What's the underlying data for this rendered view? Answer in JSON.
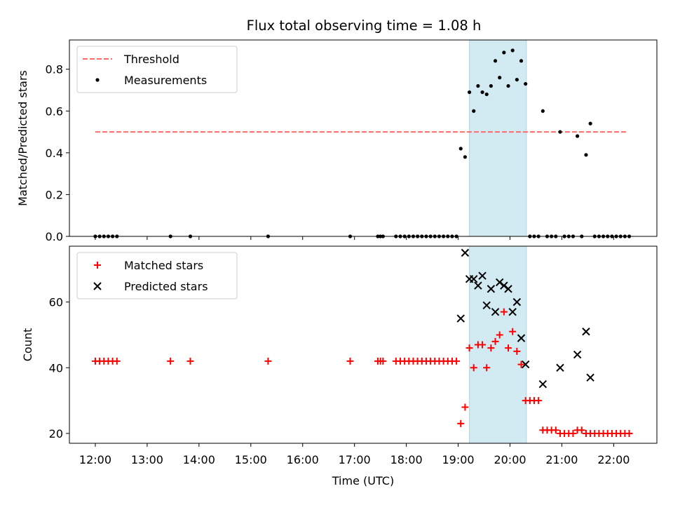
{
  "title": "Flux total observing time = 1.08 h",
  "colors": {
    "threshold": "#ff6b6b",
    "measurement": "#000000",
    "matched": "#ff0000",
    "predicted": "#000000",
    "highlight": "#add8e6"
  },
  "chart_data": [
    {
      "type": "scatter",
      "title": "Flux total observing time = 1.08 h",
      "xlabel": "",
      "ylabel": "Matched/Predicted stars",
      "xlim": [
        "11:30",
        "22:50"
      ],
      "ylim": [
        0,
        0.94
      ],
      "y_ticks": [
        0.0,
        0.2,
        0.4,
        0.6,
        0.8
      ],
      "y_tick_labels": [
        "0.0",
        "0.2",
        "0.4",
        "0.6",
        "0.8"
      ],
      "highlight_span": [
        "19:13",
        "20:19"
      ],
      "legend_position": "upper-left",
      "series": [
        {
          "name": "Threshold",
          "kind": "dashed-line",
          "x": [
            "12:00",
            "22:15"
          ],
          "y": [
            0.5,
            0.5
          ]
        },
        {
          "name": "Measurements",
          "kind": "points",
          "points": [
            [
              "12:00",
              0.0
            ],
            [
              "12:05",
              0.0
            ],
            [
              "12:10",
              0.0
            ],
            [
              "12:15",
              0.0
            ],
            [
              "12:20",
              0.0
            ],
            [
              "12:25",
              0.0
            ],
            [
              "13:27",
              0.0
            ],
            [
              "13:50",
              0.0
            ],
            [
              "15:20",
              0.0
            ],
            [
              "16:55",
              0.0
            ],
            [
              "17:27",
              0.0
            ],
            [
              "17:30",
              0.0
            ],
            [
              "17:33",
              0.0
            ],
            [
              "17:48",
              0.0
            ],
            [
              "17:53",
              0.0
            ],
            [
              "17:58",
              0.0
            ],
            [
              "18:03",
              0.0
            ],
            [
              "18:08",
              0.0
            ],
            [
              "18:13",
              0.0
            ],
            [
              "18:18",
              0.0
            ],
            [
              "18:23",
              0.0
            ],
            [
              "18:28",
              0.0
            ],
            [
              "18:33",
              0.0
            ],
            [
              "18:38",
              0.0
            ],
            [
              "18:43",
              0.0
            ],
            [
              "18:48",
              0.0
            ],
            [
              "18:53",
              0.0
            ],
            [
              "18:58",
              0.0
            ],
            [
              "19:03",
              0.42
            ],
            [
              "19:08",
              0.38
            ],
            [
              "19:13",
              0.69
            ],
            [
              "19:18",
              0.6
            ],
            [
              "19:23",
              0.72
            ],
            [
              "19:28",
              0.69
            ],
            [
              "19:33",
              0.68
            ],
            [
              "19:38",
              0.72
            ],
            [
              "19:43",
              0.84
            ],
            [
              "19:48",
              0.76
            ],
            [
              "19:53",
              0.88
            ],
            [
              "19:58",
              0.72
            ],
            [
              "20:03",
              0.89
            ],
            [
              "20:08",
              0.75
            ],
            [
              "20:13",
              0.84
            ],
            [
              "20:18",
              0.73
            ],
            [
              "20:23",
              0.0
            ],
            [
              "20:28",
              0.0
            ],
            [
              "20:33",
              0.0
            ],
            [
              "20:38",
              0.6
            ],
            [
              "20:43",
              0.0
            ],
            [
              "20:48",
              0.0
            ],
            [
              "20:53",
              0.0
            ],
            [
              "20:58",
              0.5
            ],
            [
              "21:03",
              0.0
            ],
            [
              "21:08",
              0.0
            ],
            [
              "21:13",
              0.0
            ],
            [
              "21:18",
              0.48
            ],
            [
              "21:23",
              0.0
            ],
            [
              "21:28",
              0.39
            ],
            [
              "21:33",
              0.54
            ],
            [
              "21:38",
              0.0
            ],
            [
              "21:43",
              0.0
            ],
            [
              "21:48",
              0.0
            ],
            [
              "21:53",
              0.0
            ],
            [
              "21:58",
              0.0
            ],
            [
              "22:03",
              0.0
            ],
            [
              "22:08",
              0.0
            ],
            [
              "22:13",
              0.0
            ],
            [
              "22:18",
              0.0
            ]
          ]
        }
      ]
    },
    {
      "type": "scatter",
      "title": "",
      "xlabel": "Time (UTC)",
      "ylabel": "Count",
      "xlim": [
        "11:30",
        "22:50"
      ],
      "ylim": [
        17,
        77
      ],
      "y_ticks": [
        20,
        40,
        60
      ],
      "y_tick_labels": [
        "20",
        "40",
        "60"
      ],
      "x_ticks": [
        "12:00",
        "13:00",
        "14:00",
        "15:00",
        "16:00",
        "17:00",
        "18:00",
        "19:00",
        "20:00",
        "21:00",
        "22:00"
      ],
      "highlight_span": [
        "19:13",
        "20:19"
      ],
      "legend_position": "upper-left",
      "series": [
        {
          "name": "Matched stars",
          "kind": "plus",
          "points": [
            [
              "12:00",
              42
            ],
            [
              "12:05",
              42
            ],
            [
              "12:10",
              42
            ],
            [
              "12:15",
              42
            ],
            [
              "12:20",
              42
            ],
            [
              "12:25",
              42
            ],
            [
              "13:27",
              42
            ],
            [
              "13:50",
              42
            ],
            [
              "15:20",
              42
            ],
            [
              "16:55",
              42
            ],
            [
              "17:27",
              42
            ],
            [
              "17:30",
              42
            ],
            [
              "17:33",
              42
            ],
            [
              "17:48",
              42
            ],
            [
              "17:53",
              42
            ],
            [
              "17:58",
              42
            ],
            [
              "18:03",
              42
            ],
            [
              "18:08",
              42
            ],
            [
              "18:13",
              42
            ],
            [
              "18:18",
              42
            ],
            [
              "18:23",
              42
            ],
            [
              "18:28",
              42
            ],
            [
              "18:33",
              42
            ],
            [
              "18:38",
              42
            ],
            [
              "18:43",
              42
            ],
            [
              "18:48",
              42
            ],
            [
              "18:53",
              42
            ],
            [
              "18:58",
              42
            ],
            [
              "19:03",
              23
            ],
            [
              "19:08",
              28
            ],
            [
              "19:13",
              46
            ],
            [
              "19:18",
              40
            ],
            [
              "19:23",
              47
            ],
            [
              "19:28",
              47
            ],
            [
              "19:33",
              40
            ],
            [
              "19:38",
              46
            ],
            [
              "19:43",
              48
            ],
            [
              "19:48",
              50
            ],
            [
              "19:53",
              57
            ],
            [
              "19:58",
              46
            ],
            [
              "20:03",
              51
            ],
            [
              "20:08",
              45
            ],
            [
              "20:13",
              41
            ],
            [
              "20:18",
              30
            ],
            [
              "20:23",
              30
            ],
            [
              "20:28",
              30
            ],
            [
              "20:33",
              30
            ],
            [
              "20:38",
              21
            ],
            [
              "20:43",
              21
            ],
            [
              "20:48",
              21
            ],
            [
              "20:53",
              21
            ],
            [
              "20:58",
              20
            ],
            [
              "21:03",
              20
            ],
            [
              "21:08",
              20
            ],
            [
              "21:13",
              20
            ],
            [
              "21:18",
              21
            ],
            [
              "21:23",
              21
            ],
            [
              "21:28",
              20
            ],
            [
              "21:33",
              20
            ],
            [
              "21:38",
              20
            ],
            [
              "21:43",
              20
            ],
            [
              "21:48",
              20
            ],
            [
              "21:53",
              20
            ],
            [
              "21:58",
              20
            ],
            [
              "22:03",
              20
            ],
            [
              "22:08",
              20
            ],
            [
              "22:13",
              20
            ],
            [
              "22:18",
              20
            ]
          ]
        },
        {
          "name": "Predicted stars",
          "kind": "x",
          "points": [
            [
              "19:03",
              55
            ],
            [
              "19:08",
              75
            ],
            [
              "19:13",
              67
            ],
            [
              "19:18",
              67
            ],
            [
              "19:23",
              65
            ],
            [
              "19:28",
              68
            ],
            [
              "19:33",
              59
            ],
            [
              "19:38",
              64
            ],
            [
              "19:43",
              57
            ],
            [
              "19:48",
              66
            ],
            [
              "19:53",
              65
            ],
            [
              "19:58",
              64
            ],
            [
              "20:03",
              57
            ],
            [
              "20:08",
              60
            ],
            [
              "20:13",
              49
            ],
            [
              "20:18",
              41
            ],
            [
              "20:38",
              35
            ],
            [
              "20:58",
              40
            ],
            [
              "21:18",
              44
            ],
            [
              "21:28",
              51
            ],
            [
              "21:33",
              37
            ]
          ]
        }
      ]
    }
  ]
}
